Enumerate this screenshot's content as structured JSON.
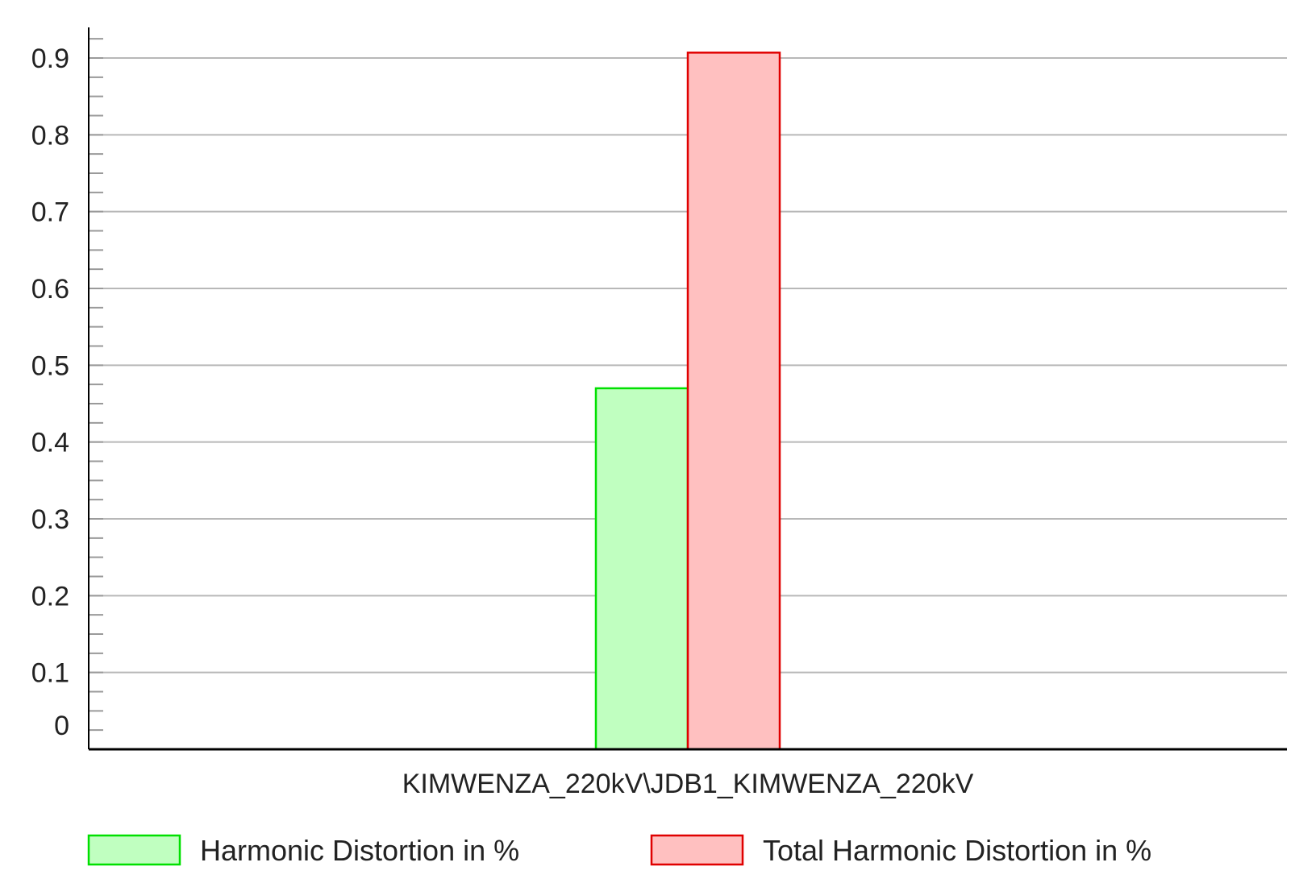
{
  "chart_data": {
    "type": "bar",
    "categories": [
      "KIMWENZA_220kV\\JDB1_KIMWENZA_220kV"
    ],
    "series": [
      {
        "name": "Harmonic Distortion in %",
        "values": [
          0.47
        ],
        "color": "#00e000",
        "fill": "#c0ffc0"
      },
      {
        "name": "Total Harmonic Distortion in %",
        "values": [
          0.907
        ],
        "color": "#e00000",
        "fill": "#ffc0c0"
      }
    ],
    "ylim": [
      0,
      0.9
    ],
    "yticks": [
      "0",
      "0.1",
      "0.2",
      "0.3",
      "0.4",
      "0.5",
      "0.6",
      "0.7",
      "0.8",
      "0.9"
    ],
    "grid": true,
    "legend": "bottom",
    "title": "",
    "xlabel": "",
    "ylabel": ""
  }
}
